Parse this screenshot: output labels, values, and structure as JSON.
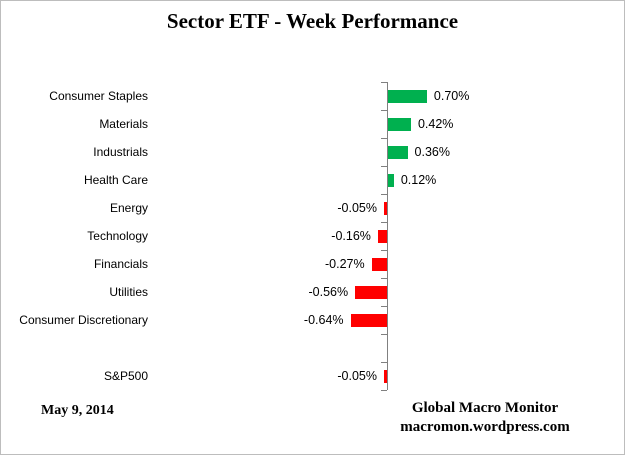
{
  "title": "Sector ETF - Week Performance",
  "footer": {
    "date": "May 9, 2014",
    "source_line1": "Global Macro Monitor",
    "source_line2": "macromon.wordpress.com"
  },
  "colors": {
    "positive_bar": "#00B04F",
    "negative_bar": "#FF0000",
    "axis": "#808080",
    "border": "#BDBDBD",
    "text": "#000000"
  },
  "chart_data": {
    "type": "bar",
    "orientation": "horizontal",
    "title": "Sector ETF - Week Performance",
    "xlabel": "",
    "ylabel": "",
    "grid": false,
    "legend": false,
    "data_labels": true,
    "value_axis_labels_visible": false,
    "value_unit": "percent",
    "categories": [
      "Consumer Staples",
      "Materials",
      "Industrials",
      "Health Care",
      "Energy",
      "Technology",
      "Financials",
      "Utilities",
      "Consumer Discretionary",
      "",
      "S&P500"
    ],
    "values": [
      0.7,
      0.42,
      0.36,
      0.12,
      -0.05,
      -0.16,
      -0.27,
      -0.56,
      -0.64,
      null,
      -0.05
    ],
    "value_labels": [
      "0.70%",
      "0.42%",
      "0.36%",
      "0.12%",
      "-0.05%",
      "-0.16%",
      "-0.27%",
      "-0.56%",
      "-0.64%",
      "",
      "-0.05%"
    ]
  }
}
